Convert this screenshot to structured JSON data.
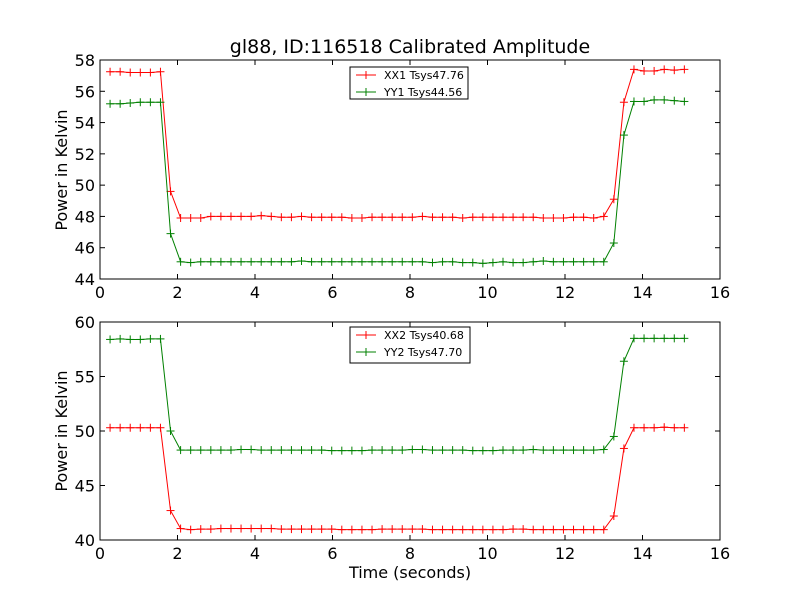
{
  "figure": {
    "title": "gl88, ID:116518 Calibrated Amplitude"
  },
  "chart_data": [
    {
      "type": "line",
      "title": "gl88, ID:116518 Calibrated Amplitude",
      "xlabel": "",
      "ylabel": "Power in Kelvin",
      "xlim": [
        0,
        16
      ],
      "ylim": [
        44,
        58
      ],
      "xticks": [
        0,
        2,
        4,
        6,
        8,
        10,
        12,
        14,
        16
      ],
      "yticks": [
        44,
        46,
        48,
        50,
        52,
        54,
        56,
        58
      ],
      "legend_position": "upper-center",
      "x": [
        0.26,
        0.52,
        0.78,
        1.04,
        1.3,
        1.56,
        1.82,
        2.08,
        2.34,
        2.6,
        2.86,
        3.12,
        3.38,
        3.64,
        3.9,
        4.16,
        4.42,
        4.68,
        4.94,
        5.2,
        5.46,
        5.72,
        5.98,
        6.24,
        6.5,
        6.76,
        7.02,
        7.28,
        7.54,
        7.8,
        8.06,
        8.32,
        8.58,
        8.84,
        9.1,
        9.36,
        9.62,
        9.88,
        10.14,
        10.4,
        10.66,
        10.92,
        11.18,
        11.44,
        11.7,
        11.96,
        12.22,
        12.48,
        12.74,
        13.0,
        13.26,
        13.52,
        13.78,
        14.04,
        14.3,
        14.56,
        14.82,
        15.08
      ],
      "series": [
        {
          "name": "XX1 Tsys47.76",
          "color": "#ff0000",
          "values": [
            57.25,
            57.25,
            57.2,
            57.2,
            57.2,
            57.25,
            49.6,
            47.9,
            47.9,
            47.9,
            48.0,
            48.0,
            48.0,
            48.0,
            48.0,
            48.05,
            48.0,
            47.95,
            47.95,
            48.0,
            47.95,
            47.95,
            47.95,
            47.95,
            47.9,
            47.9,
            47.95,
            47.95,
            47.95,
            47.95,
            47.95,
            48.0,
            47.95,
            47.95,
            47.95,
            47.9,
            47.95,
            47.95,
            47.95,
            47.95,
            47.95,
            47.95,
            47.95,
            47.9,
            47.9,
            47.9,
            47.95,
            47.95,
            47.9,
            48.0,
            49.1,
            55.3,
            57.4,
            57.3,
            57.3,
            57.4,
            57.35,
            57.4
          ]
        },
        {
          "name": "YY1 Tsys44.56",
          "color": "#008000",
          "values": [
            55.2,
            55.2,
            55.25,
            55.3,
            55.3,
            55.3,
            46.9,
            45.1,
            45.05,
            45.1,
            45.1,
            45.1,
            45.1,
            45.1,
            45.1,
            45.1,
            45.1,
            45.1,
            45.1,
            45.15,
            45.1,
            45.1,
            45.1,
            45.1,
            45.1,
            45.1,
            45.1,
            45.1,
            45.1,
            45.1,
            45.1,
            45.1,
            45.05,
            45.1,
            45.1,
            45.05,
            45.05,
            45.0,
            45.05,
            45.1,
            45.05,
            45.05,
            45.1,
            45.15,
            45.1,
            45.1,
            45.1,
            45.1,
            45.1,
            45.1,
            46.3,
            53.2,
            55.35,
            55.35,
            55.45,
            55.45,
            55.4,
            55.35
          ]
        }
      ]
    },
    {
      "type": "line",
      "title": "",
      "xlabel": "Time (seconds)",
      "ylabel": "Power in Kelvin",
      "xlim": [
        0,
        16
      ],
      "ylim": [
        40,
        60
      ],
      "xticks": [
        0,
        2,
        4,
        6,
        8,
        10,
        12,
        14,
        16
      ],
      "yticks": [
        40,
        45,
        50,
        55,
        60
      ],
      "legend_position": "upper-center",
      "x": [
        0.26,
        0.52,
        0.78,
        1.04,
        1.3,
        1.56,
        1.82,
        2.08,
        2.34,
        2.6,
        2.86,
        3.12,
        3.38,
        3.64,
        3.9,
        4.16,
        4.42,
        4.68,
        4.94,
        5.2,
        5.46,
        5.72,
        5.98,
        6.24,
        6.5,
        6.76,
        7.02,
        7.28,
        7.54,
        7.8,
        8.06,
        8.32,
        8.58,
        8.84,
        9.1,
        9.36,
        9.62,
        9.88,
        10.14,
        10.4,
        10.66,
        10.92,
        11.18,
        11.44,
        11.7,
        11.96,
        12.22,
        12.48,
        12.74,
        13.0,
        13.26,
        13.52,
        13.78,
        14.04,
        14.3,
        14.56,
        14.82,
        15.08
      ],
      "series": [
        {
          "name": "XX2 Tsys40.68",
          "color": "#ff0000",
          "values": [
            50.3,
            50.3,
            50.3,
            50.3,
            50.3,
            50.3,
            42.7,
            41.05,
            40.95,
            41.0,
            41.0,
            41.05,
            41.05,
            41.05,
            41.05,
            41.05,
            41.05,
            41.0,
            41.0,
            41.0,
            41.0,
            41.0,
            41.0,
            40.95,
            40.95,
            40.95,
            40.95,
            41.0,
            41.0,
            41.0,
            41.0,
            41.0,
            40.95,
            40.95,
            40.95,
            40.95,
            40.95,
            40.95,
            40.95,
            40.95,
            41.0,
            41.0,
            40.95,
            40.95,
            40.95,
            40.95,
            40.95,
            40.95,
            40.95,
            40.95,
            42.2,
            48.4,
            50.3,
            50.3,
            50.3,
            50.35,
            50.3,
            50.3
          ]
        },
        {
          "name": "YY2 Tsys47.70",
          "color": "#008000",
          "values": [
            58.4,
            58.45,
            58.4,
            58.4,
            58.45,
            58.45,
            50.0,
            48.25,
            48.25,
            48.25,
            48.25,
            48.25,
            48.25,
            48.3,
            48.3,
            48.25,
            48.25,
            48.25,
            48.25,
            48.25,
            48.25,
            48.25,
            48.2,
            48.2,
            48.2,
            48.2,
            48.25,
            48.25,
            48.25,
            48.25,
            48.3,
            48.3,
            48.25,
            48.25,
            48.25,
            48.25,
            48.2,
            48.2,
            48.2,
            48.25,
            48.25,
            48.25,
            48.3,
            48.25,
            48.25,
            48.25,
            48.25,
            48.25,
            48.25,
            48.3,
            49.5,
            56.4,
            58.5,
            58.5,
            58.5,
            58.5,
            58.5,
            58.5
          ]
        }
      ]
    }
  ]
}
